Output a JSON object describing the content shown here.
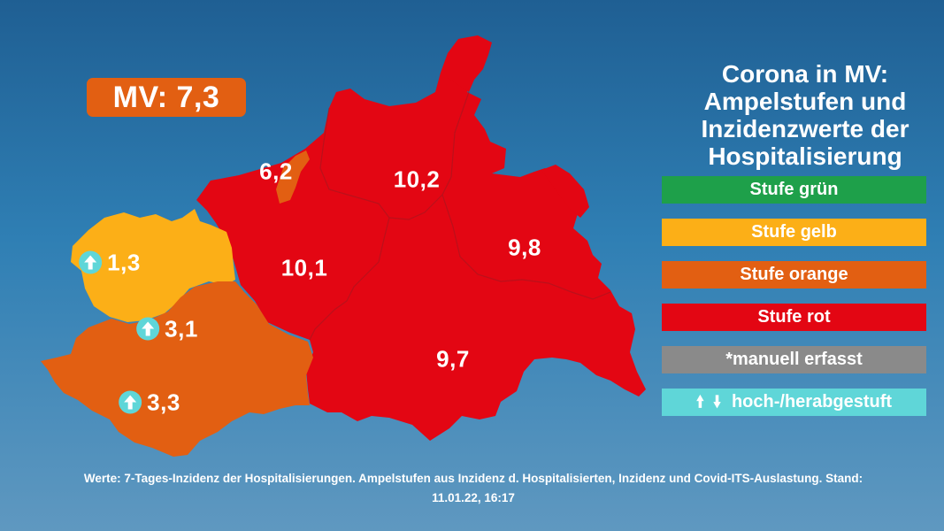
{
  "title_lines": [
    "Corona in MV:",
    "Ampelstufen und",
    "Inzidenzwerte der",
    "Hospitalisierung"
  ],
  "mv_total": "MV: 7,3",
  "legend": [
    {
      "label": "Stufe grün",
      "color": "#1ea04a"
    },
    {
      "label": "Stufe gelb",
      "color": "#fcaf17"
    },
    {
      "label": "Stufe orange",
      "color": "#e25f12"
    },
    {
      "label": "Stufe rot",
      "color": "#e30613"
    },
    {
      "label": "*manuell erfasst",
      "color": "#8a8a8a"
    },
    {
      "label": "hoch-/herabgestuft",
      "color": "#5fd6d8",
      "icons": [
        "arrow-up-icon",
        "arrow-down-icon"
      ]
    }
  ],
  "regions": [
    {
      "value": "6,2",
      "level": "orange",
      "trend": null
    },
    {
      "value": "10,2",
      "level": "rot",
      "trend": null
    },
    {
      "value": "10,1",
      "level": "rot",
      "trend": null
    },
    {
      "value": "9,8",
      "level": "rot",
      "trend": null
    },
    {
      "value": "9,7",
      "level": "rot",
      "trend": null
    },
    {
      "value": "1,3",
      "level": "gelb",
      "trend": "up"
    },
    {
      "value": "3,1",
      "level": "orange",
      "trend": "up"
    },
    {
      "value": "3,3",
      "level": "orange",
      "trend": "up"
    }
  ],
  "footnote_lines": [
    "Werte: 7-Tages-Inzidenz der Hospitalisierungen. Ampelstufen aus Inzidenz d. Hospitalisierten, Inzidenz und Covid-ITS-Auslastung. Stand:",
    "11.01.22, 16:17"
  ]
}
